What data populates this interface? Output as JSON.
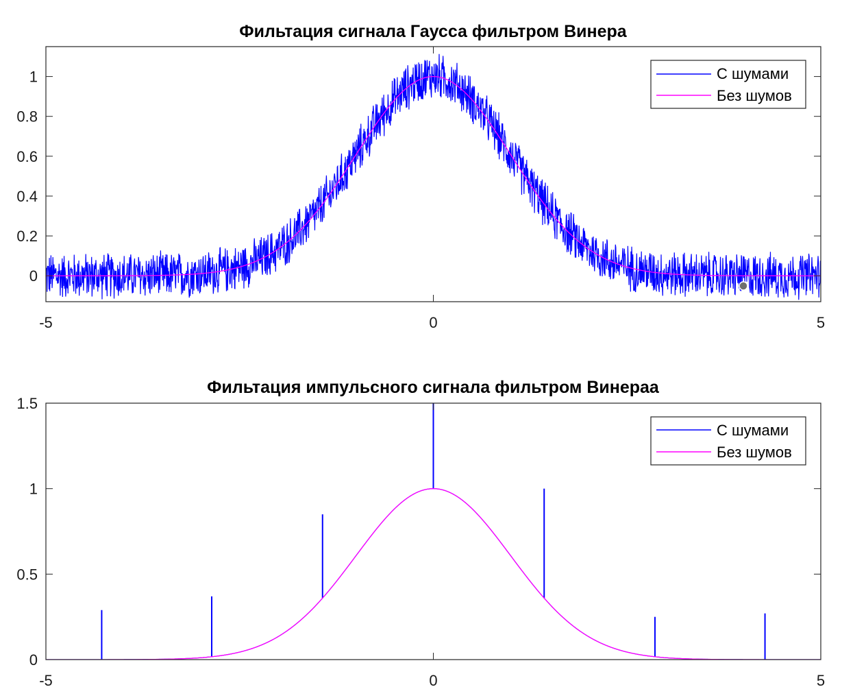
{
  "chart_data": [
    {
      "type": "line",
      "title": "Фильтация сигнала Гаусса фильтром Винера",
      "xlabel": "",
      "ylabel": "",
      "xlim": [
        -5,
        5
      ],
      "ylim": [
        -0.13,
        1.15
      ],
      "xticks": [
        "-5",
        "0",
        "5"
      ],
      "xtick_values": [
        -5,
        0,
        5
      ],
      "yticks": [
        "0",
        "0.2",
        "0.4",
        "0.6",
        "0.8",
        "1"
      ],
      "ytick_values": [
        0,
        0.2,
        0.4,
        0.6,
        0.8,
        1
      ],
      "grid": false,
      "legend_position": "top-right",
      "series": [
        {
          "name": "С шумами",
          "color": "#0000ff",
          "description_of_values": "exp(-x^2/2) + uniform noise in roughly ±0.13, sampled from -5 to 5",
          "function": "exp(-x^2/2)+noise",
          "noise_amplitude": 0.13
        },
        {
          "name": "Без шумов",
          "color": "#ff00ff",
          "function": "exp(-x^2/2)"
        }
      ]
    },
    {
      "type": "line",
      "title": "Фильтация импульсного сигнала фильтром Винераа",
      "xlabel": "",
      "ylabel": "",
      "xlim": [
        -5,
        5
      ],
      "ylim": [
        0,
        1.5
      ],
      "xticks": [
        "-5",
        "0",
        "5"
      ],
      "xtick_values": [
        -5,
        0,
        5
      ],
      "yticks": [
        "0",
        "0.5",
        "1",
        "1.5"
      ],
      "ytick_values": [
        0,
        0.5,
        1,
        1.5
      ],
      "grid": false,
      "legend_position": "top-right",
      "series": [
        {
          "name": "С шумами",
          "color": "#0000ff",
          "function": "exp(-x^2/2)+impulses",
          "impulses": [
            {
              "x": -4.28,
              "y": 0.29
            },
            {
              "x": -2.86,
              "y": 0.37
            },
            {
              "x": -1.43,
              "y": 0.85
            },
            {
              "x": 0.0,
              "y": 1.5
            },
            {
              "x": 1.43,
              "y": 1.0
            },
            {
              "x": 2.86,
              "y": 0.25
            },
            {
              "x": 4.28,
              "y": 0.27
            }
          ]
        },
        {
          "name": "Без шумов",
          "color": "#ff00ff",
          "function": "exp(-x^2/2)"
        }
      ]
    }
  ]
}
